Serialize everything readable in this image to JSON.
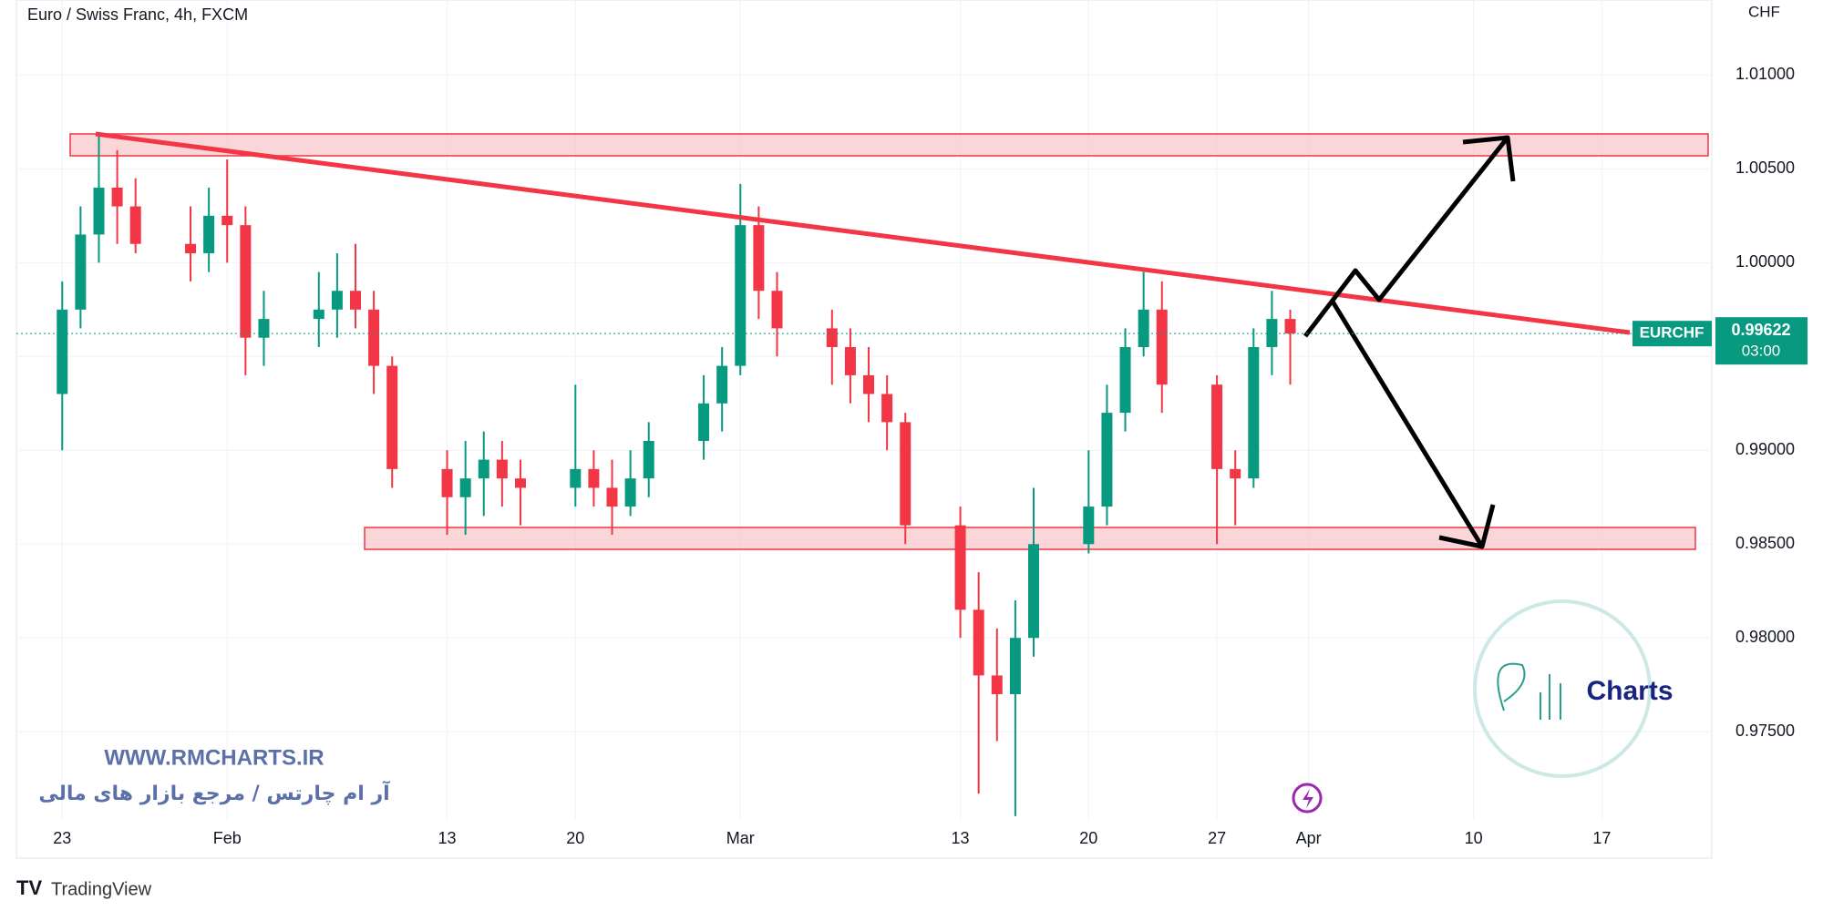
{
  "header": {
    "title": "Euro / Swiss Franc, 4h, FXCM",
    "currency": "CHF"
  },
  "chart_data": {
    "type": "candlestick",
    "x": [
      0,
      1,
      2,
      3,
      4,
      7,
      8,
      9,
      10,
      11,
      14,
      15,
      16,
      17,
      18,
      21,
      22,
      23,
      24,
      25,
      28,
      29,
      30,
      31,
      32,
      35,
      36,
      37,
      38,
      39,
      42,
      43,
      44,
      45,
      46,
      49,
      50,
      51,
      52,
      53,
      56,
      57,
      58,
      59,
      60,
      63,
      64,
      65,
      66,
      67
    ],
    "open": [
      0.993,
      0.9975,
      1.0015,
      1.004,
      1.003,
      1.001,
      1.0005,
      1.0025,
      1.002,
      0.996,
      0.997,
      0.9975,
      0.9985,
      0.9975,
      0.9945,
      0.989,
      0.9875,
      0.9885,
      0.9895,
      0.9885,
      0.988,
      0.989,
      0.988,
      0.987,
      0.9885,
      0.9905,
      0.9925,
      0.9945,
      1.002,
      0.9985,
      0.9965,
      0.9955,
      0.994,
      0.993,
      0.9915,
      0.986,
      0.9815,
      0.978,
      0.977,
      0.98,
      0.985,
      0.987,
      0.992,
      0.9955,
      0.9975,
      0.9935,
      0.989,
      0.9885,
      0.9955,
      0.997
    ],
    "high": [
      0.999,
      1.003,
      1.0068,
      1.006,
      1.0045,
      1.003,
      1.004,
      1.0055,
      1.003,
      0.9985,
      0.9995,
      1.0005,
      1.001,
      0.9985,
      0.995,
      0.99,
      0.9905,
      0.991,
      0.9905,
      0.9895,
      0.9935,
      0.99,
      0.9895,
      0.99,
      0.9915,
      0.994,
      0.9955,
      1.0042,
      1.003,
      0.9995,
      0.9975,
      0.9965,
      0.9955,
      0.994,
      0.992,
      0.987,
      0.9835,
      0.9805,
      0.982,
      0.988,
      0.99,
      0.9935,
      0.9965,
      0.9995,
      0.999,
      0.994,
      0.99,
      0.9965,
      0.9985,
      0.9975
    ],
    "low": [
      0.99,
      0.9965,
      1.0,
      1.001,
      1.0005,
      0.999,
      0.9995,
      1.0,
      0.994,
      0.9945,
      0.9955,
      0.996,
      0.9965,
      0.993,
      0.988,
      0.9855,
      0.9855,
      0.9865,
      0.987,
      0.986,
      0.987,
      0.987,
      0.9855,
      0.9865,
      0.9875,
      0.9895,
      0.991,
      0.994,
      0.997,
      0.995,
      0.9935,
      0.9925,
      0.9915,
      0.99,
      0.985,
      0.98,
      0.9717,
      0.9745,
      0.9705,
      0.979,
      0.9845,
      0.986,
      0.991,
      0.995,
      0.992,
      0.985,
      0.986,
      0.988,
      0.994,
      0.9935
    ],
    "close": [
      0.9975,
      1.0015,
      1.004,
      1.003,
      1.001,
      1.0005,
      1.0025,
      1.002,
      0.996,
      0.997,
      0.9975,
      0.9985,
      0.9975,
      0.9945,
      0.989,
      0.9875,
      0.9885,
      0.9895,
      0.9885,
      0.988,
      0.989,
      0.988,
      0.987,
      0.9885,
      0.9905,
      0.9925,
      0.9945,
      1.002,
      0.9985,
      0.9965,
      0.9955,
      0.994,
      0.993,
      0.9915,
      0.986,
      0.9815,
      0.978,
      0.977,
      0.98,
      0.985,
      0.987,
      0.992,
      0.9955,
      0.9975,
      0.9935,
      0.989,
      0.9885,
      0.9955,
      0.997,
      0.99622
    ],
    "up_color": "#089981",
    "down_color": "#f23645",
    "xlim": [
      -2.5,
      90
    ],
    "xticks": [
      {
        "value": 0,
        "label": "23"
      },
      {
        "value": 9,
        "label": "Feb"
      },
      {
        "value": 21,
        "label": "13"
      },
      {
        "value": 28,
        "label": "20"
      },
      {
        "value": 37,
        "label": "Mar"
      },
      {
        "value": 49,
        "label": "13"
      },
      {
        "value": 56,
        "label": "20"
      },
      {
        "value": 63,
        "label": "27"
      },
      {
        "value": 68,
        "label": "Apr"
      },
      {
        "value": 77,
        "label": "10"
      },
      {
        "value": 84,
        "label": "17"
      }
    ],
    "ylim": [
      0.9703,
      1.014
    ],
    "yticks": [
      {
        "value": 0.975,
        "label": "0.97500"
      },
      {
        "value": 0.98,
        "label": "0.98000"
      },
      {
        "value": 0.985,
        "label": "0.98500"
      },
      {
        "value": 0.99,
        "label": "0.99000"
      },
      {
        "value": 0.995,
        "label": "0.99500"
      },
      {
        "value": 1.0,
        "label": "1.00000"
      },
      {
        "value": 1.005,
        "label": "1.00500"
      },
      {
        "value": 1.01,
        "label": "1.01000"
      }
    ],
    "last_price": {
      "symbol": "EURCHF",
      "value": 0.99622,
      "countdown": "03:00"
    }
  },
  "watermark": {
    "url": "WWW.RMCHARTS.IR",
    "tagline": "آر ام چارتس / مرجع بازار های مالی",
    "logo": "Charts"
  },
  "footer": {
    "brand": "TradingView"
  }
}
